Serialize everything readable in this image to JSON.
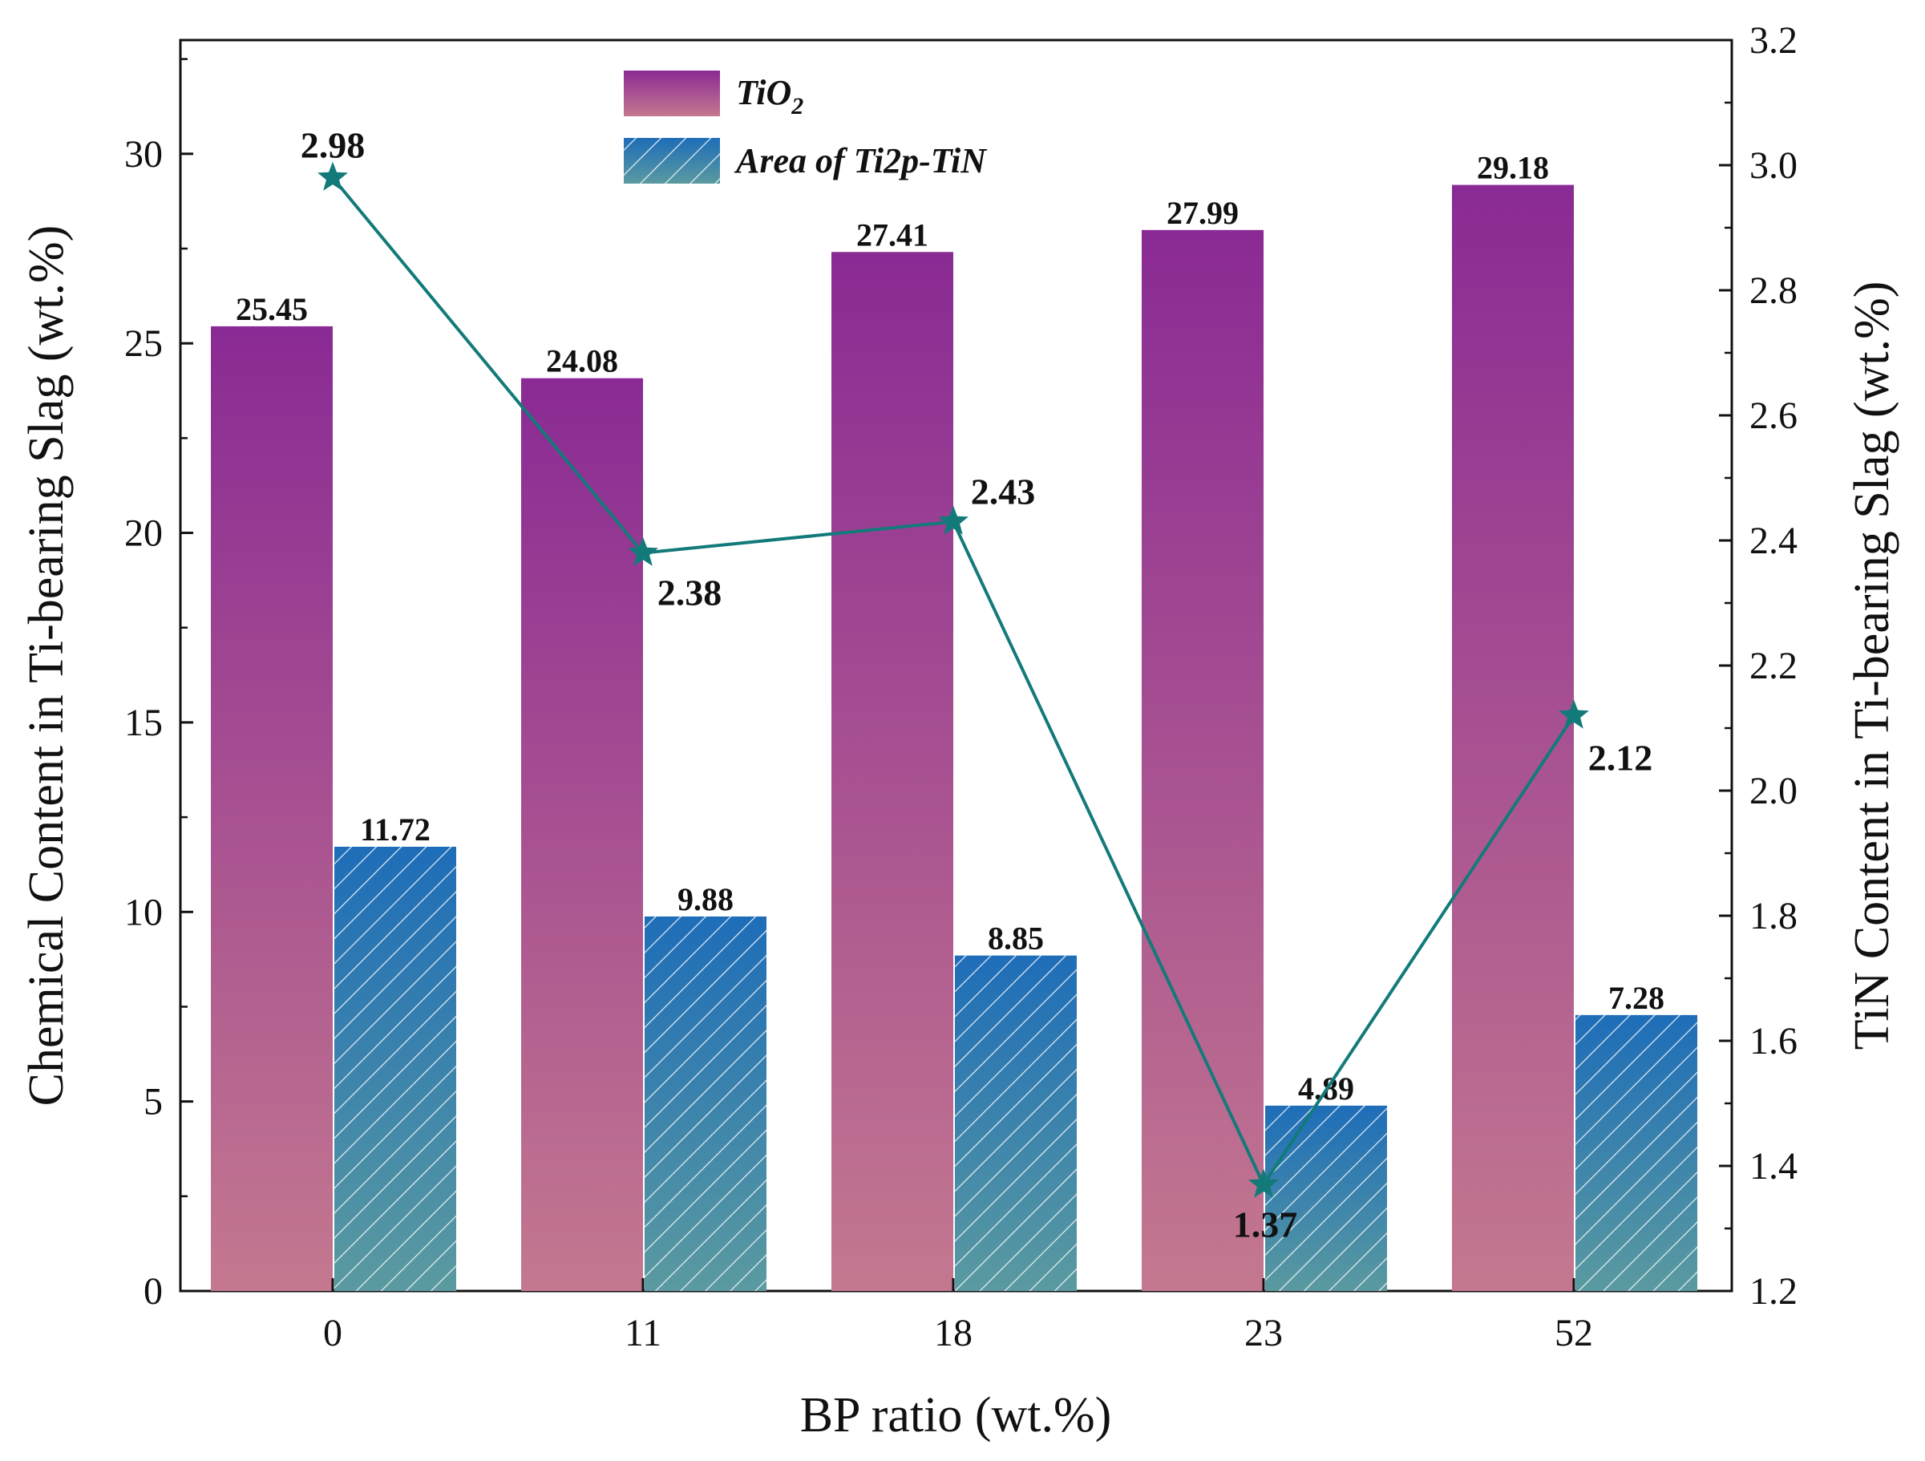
{
  "chart_data": {
    "type": "bar",
    "categories": [
      "0",
      "11",
      "18",
      "23",
      "52"
    ],
    "xlabel": "BP ratio (wt.%)",
    "ylabel": "Chemical Content in Ti-bearing Slag (wt.%)",
    "y2label": "TiN Content in Ti-bearing Slag (wt.%)",
    "ylim": [
      0,
      33
    ],
    "y2lim": [
      1.2,
      3.2
    ],
    "yticks": [
      "0",
      "5",
      "10",
      "15",
      "20",
      "25",
      "30"
    ],
    "y2ticks": [
      "1.2",
      "1.4",
      "1.6",
      "1.8",
      "2.0",
      "2.2",
      "2.4",
      "2.6",
      "2.8",
      "3.0",
      "3.2"
    ],
    "series": [
      {
        "name": "TiO",
        "name_subscript": "2",
        "type": "bar",
        "axis": "left",
        "values": [
          25.45,
          24.08,
          27.41,
          27.99,
          29.18
        ],
        "labels": [
          "25.45",
          "24.08",
          "27.41",
          "27.99",
          "29.18"
        ],
        "color_top": "#8a2a94",
        "color_bottom": "#c4788f"
      },
      {
        "name": "Area of Ti2p-TiN",
        "type": "bar",
        "axis": "left",
        "hatch": true,
        "values": [
          11.72,
          9.88,
          8.85,
          4.89,
          7.28
        ],
        "labels": [
          "11.72",
          "9.88",
          "8.85",
          "4.89",
          "7.28"
        ],
        "color_top": "#1e6db8",
        "color_bottom": "#5a9aa0"
      },
      {
        "name": "TiN",
        "type": "line",
        "axis": "right",
        "marker": "star",
        "values": [
          2.98,
          2.38,
          2.43,
          1.37,
          2.12
        ],
        "labels": [
          "2.98",
          "2.38",
          "2.43",
          "1.37",
          "2.12"
        ],
        "color": "#137a7a"
      }
    ],
    "legend_position": "top-center"
  }
}
